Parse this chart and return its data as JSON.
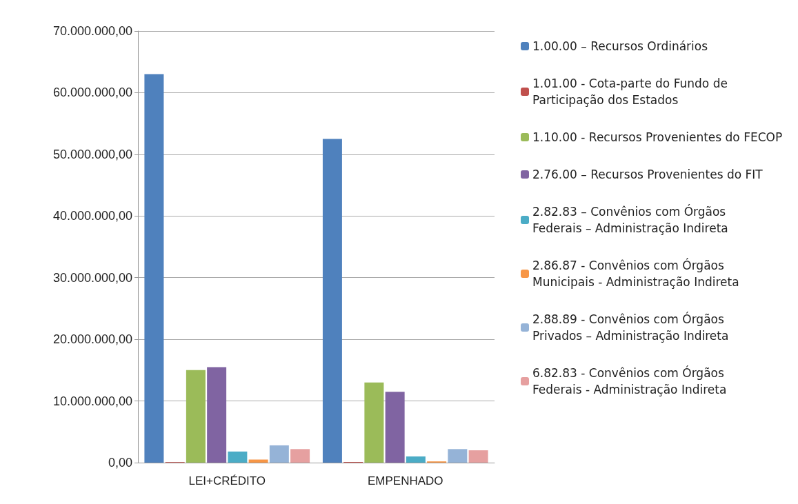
{
  "chart_data": {
    "type": "bar",
    "categories": [
      "LEI+CRÉDITO",
      "EMPENHADO"
    ],
    "series": [
      {
        "name": "1.00.00 – Recursos Ordinários",
        "color": "#4f81bd",
        "values": [
          63000000,
          52500000
        ]
      },
      {
        "name": "1.01.00 - Cota-parte do Fundo de Participação dos Estados",
        "color": "#c0504d",
        "values": [
          100000,
          100000
        ]
      },
      {
        "name": "1.10.00 - Recursos Provenientes do FECOP",
        "color": "#9bbb59",
        "values": [
          15000000,
          13000000
        ]
      },
      {
        "name": "2.76.00 – Recursos Provenientes do FIT",
        "color": "#8064a2",
        "values": [
          15500000,
          11500000
        ]
      },
      {
        "name": "2.82.83 – Convênios com Órgãos Federais – Administração Indireta",
        "color": "#4bacc6",
        "values": [
          1800000,
          1000000
        ]
      },
      {
        "name": "2.86.87 - Convênios com Órgãos Municipais - Administração Indireta",
        "color": "#f79646",
        "values": [
          500000,
          200000
        ]
      },
      {
        "name": "2.88.89 - Convênios com Órgãos Privados – Administração Indireta",
        "color": "#95b3d7",
        "values": [
          2800000,
          2200000
        ]
      },
      {
        "name": "6.82.83 - Convênios com Órgãos Federais - Administração Indireta",
        "color": "#e6a0a0",
        "values": [
          2200000,
          2000000
        ]
      }
    ],
    "ylim": [
      0,
      70000000
    ],
    "yticks": [
      {
        "value": 0,
        "label": "0,00"
      },
      {
        "value": 10000000,
        "label": "10.000.000,00"
      },
      {
        "value": 20000000,
        "label": "20.000.000,00"
      },
      {
        "value": 30000000,
        "label": "30.000.000,00"
      },
      {
        "value": 40000000,
        "label": "40.000.000,00"
      },
      {
        "value": 50000000,
        "label": "50.000.000,00"
      },
      {
        "value": 60000000,
        "label": "60.000.000,00"
      },
      {
        "value": 70000000,
        "label": "70.000.000,00"
      }
    ],
    "grid": "y",
    "legend": "right"
  }
}
